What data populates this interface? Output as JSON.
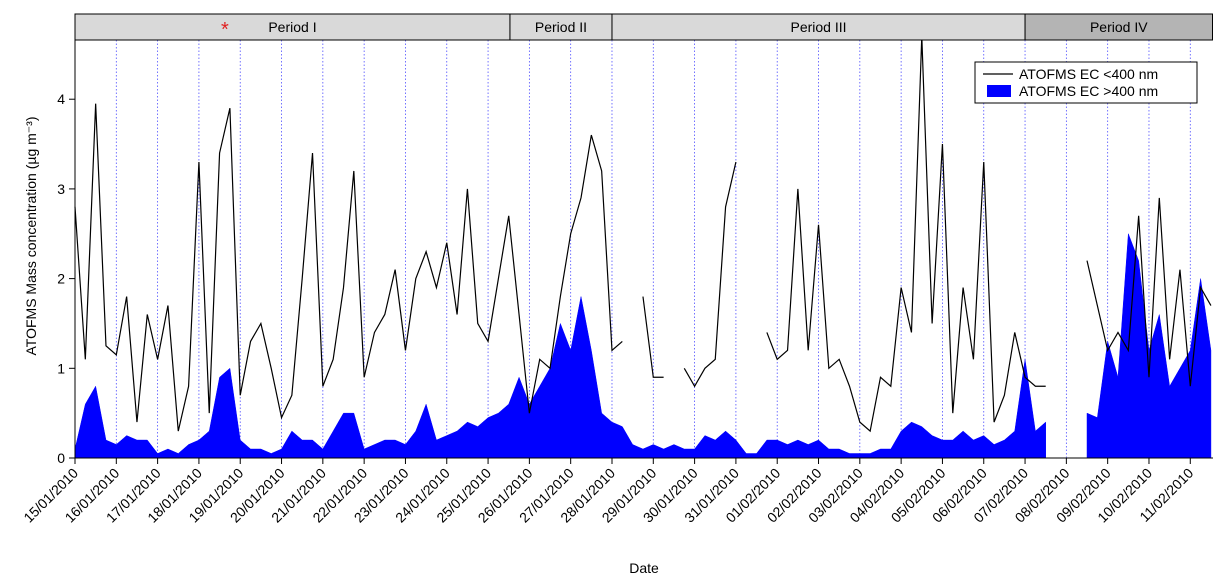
{
  "chart_data": {
    "type": "line_area",
    "y_label": "ATOFMS Mass concentration (µg m⁻³)",
    "x_label": "Date",
    "periods": [
      {
        "label": "Period I",
        "start": 0,
        "end": 10.53,
        "color": "#d9d9d9"
      },
      {
        "label": "Period II",
        "start": 10.53,
        "end": 13,
        "color": "#d9d9d9"
      },
      {
        "label": "Period III",
        "start": 13,
        "end": 23,
        "color": "#d9d9d9"
      },
      {
        "label": "Period IV",
        "start": 23,
        "end": 27.55,
        "color": "#b4b4b4"
      }
    ],
    "marker": {
      "label": "*",
      "x": 3.63,
      "color": "#e02020"
    },
    "xlim": [
      0,
      27.55
    ],
    "ylim": [
      0,
      4.95
    ],
    "yticks": [
      0,
      1,
      2,
      3,
      4
    ],
    "xticks": [
      {
        "value": 0,
        "label": "15/01/2010"
      },
      {
        "value": 1,
        "label": "16/01/2010"
      },
      {
        "value": 2,
        "label": "17/01/2010"
      },
      {
        "value": 3,
        "label": "18/01/2010"
      },
      {
        "value": 4,
        "label": "19/01/2010"
      },
      {
        "value": 5,
        "label": "20/01/2010"
      },
      {
        "value": 6,
        "label": "21/01/2010"
      },
      {
        "value": 7,
        "label": "22/01/2010"
      },
      {
        "value": 8,
        "label": "23/01/2010"
      },
      {
        "value": 9,
        "label": "24/01/2010"
      },
      {
        "value": 10,
        "label": "25/01/2010"
      },
      {
        "value": 11,
        "label": "26/01/2010"
      },
      {
        "value": 12,
        "label": "27/01/2010"
      },
      {
        "value": 13,
        "label": "28/01/2010"
      },
      {
        "value": 14,
        "label": "29/01/2010"
      },
      {
        "value": 15,
        "label": "30/01/2010"
      },
      {
        "value": 16,
        "label": "31/01/2010"
      },
      {
        "value": 17,
        "label": "01/02/2010"
      },
      {
        "value": 18,
        "label": "02/02/2010"
      },
      {
        "value": 19,
        "label": "03/02/2010"
      },
      {
        "value": 20,
        "label": "04/02/2010"
      },
      {
        "value": 21,
        "label": "05/02/2010"
      },
      {
        "value": 22,
        "label": "06/02/2010"
      },
      {
        "value": 23,
        "label": "07/02/2010"
      },
      {
        "value": 24,
        "label": "08/02/2010"
      },
      {
        "value": 25,
        "label": "09/02/2010"
      },
      {
        "value": 26,
        "label": "10/02/2010"
      },
      {
        "value": 27,
        "label": "11/02/2010"
      }
    ],
    "grid": true,
    "legend": "top-right",
    "x": [
      0,
      0.25,
      0.5,
      0.75,
      1,
      1.25,
      1.5,
      1.75,
      2,
      2.25,
      2.5,
      2.75,
      3,
      3.25,
      3.5,
      3.75,
      4,
      4.25,
      4.5,
      4.75,
      5,
      5.25,
      5.5,
      5.75,
      6,
      6.25,
      6.5,
      6.75,
      7,
      7.25,
      7.5,
      7.75,
      8,
      8.25,
      8.5,
      8.75,
      9,
      9.25,
      9.5,
      9.75,
      10,
      10.25,
      10.5,
      10.75,
      11,
      11.25,
      11.5,
      11.75,
      12,
      12.25,
      12.5,
      12.75,
      13,
      13.25,
      13.5,
      13.75,
      14,
      14.25,
      14.5,
      14.75,
      15,
      15.25,
      15.5,
      15.75,
      16,
      16.25,
      16.5,
      16.75,
      17,
      17.25,
      17.5,
      17.75,
      18,
      18.25,
      18.5,
      18.75,
      19,
      19.25,
      19.5,
      19.75,
      20,
      20.25,
      20.5,
      20.75,
      21,
      21.25,
      21.5,
      21.75,
      22,
      22.25,
      22.5,
      22.75,
      23,
      23.25,
      23.5,
      23.75,
      24,
      24.25,
      24.5,
      24.75,
      25,
      25.25,
      25.5,
      25.75,
      26,
      26.25,
      26.5,
      26.75,
      27,
      27.25,
      27.5
    ],
    "series": [
      {
        "name": "ATOFMS EC <400 nm",
        "color": "#000000",
        "style": "line",
        "values": [
          2.8,
          1.1,
          3.95,
          1.25,
          1.15,
          1.8,
          0.4,
          1.6,
          1.1,
          1.7,
          0.3,
          0.8,
          3.3,
          0.5,
          3.4,
          3.9,
          0.7,
          1.3,
          1.5,
          1.0,
          0.45,
          0.7,
          2.0,
          3.4,
          0.8,
          1.1,
          1.9,
          3.2,
          0.9,
          1.4,
          1.6,
          2.1,
          1.2,
          2.0,
          2.3,
          1.9,
          2.4,
          1.6,
          3.0,
          1.5,
          1.3,
          2.0,
          2.7,
          1.6,
          0.5,
          1.1,
          1.0,
          1.8,
          2.5,
          2.9,
          3.6,
          3.2,
          1.2,
          1.3,
          null,
          1.8,
          0.9,
          0.9,
          null,
          1.0,
          0.8,
          1.0,
          1.1,
          2.8,
          3.3,
          null,
          null,
          1.4,
          1.1,
          1.2,
          3.0,
          1.2,
          2.6,
          1.0,
          1.1,
          0.8,
          0.4,
          0.3,
          0.9,
          0.8,
          1.9,
          1.4,
          4.7,
          1.5,
          3.5,
          0.5,
          1.9,
          1.1,
          3.3,
          0.4,
          0.7,
          1.4,
          0.9,
          0.8,
          0.8,
          null,
          null,
          null,
          2.2,
          1.7,
          1.2,
          1.4,
          1.2,
          2.7,
          0.9,
          2.9,
          1.1,
          2.1,
          0.8,
          1.9,
          1.7
        ]
      },
      {
        "name": "ATOFMS EC >400 nm",
        "color": "#0000ff",
        "style": "area",
        "values": [
          0.1,
          0.6,
          0.8,
          0.2,
          0.15,
          0.25,
          0.2,
          0.2,
          0.05,
          0.1,
          0.05,
          0.15,
          0.2,
          0.3,
          0.9,
          1.0,
          0.2,
          0.1,
          0.1,
          0.05,
          0.1,
          0.3,
          0.2,
          0.2,
          0.1,
          0.3,
          0.5,
          0.5,
          0.1,
          0.15,
          0.2,
          0.2,
          0.15,
          0.3,
          0.6,
          0.2,
          0.25,
          0.3,
          0.4,
          0.35,
          0.45,
          0.5,
          0.6,
          0.9,
          0.6,
          0.8,
          1.0,
          1.5,
          1.2,
          1.8,
          1.2,
          0.5,
          0.4,
          0.35,
          0.15,
          0.1,
          0.15,
          0.1,
          0.15,
          0.1,
          0.1,
          0.25,
          0.2,
          0.3,
          0.2,
          0.05,
          0.05,
          0.2,
          0.2,
          0.15,
          0.2,
          0.15,
          0.2,
          0.1,
          0.1,
          0.05,
          0.05,
          0.05,
          0.1,
          0.1,
          0.3,
          0.4,
          0.35,
          0.25,
          0.2,
          0.2,
          0.3,
          0.2,
          0.25,
          0.15,
          0.2,
          0.3,
          1.1,
          0.3,
          0.4,
          null,
          null,
          null,
          0.5,
          0.45,
          1.3,
          0.9,
          2.5,
          2.2,
          1.2,
          1.6,
          0.8,
          1.0,
          1.2,
          2.0,
          1.2
        ]
      }
    ]
  }
}
